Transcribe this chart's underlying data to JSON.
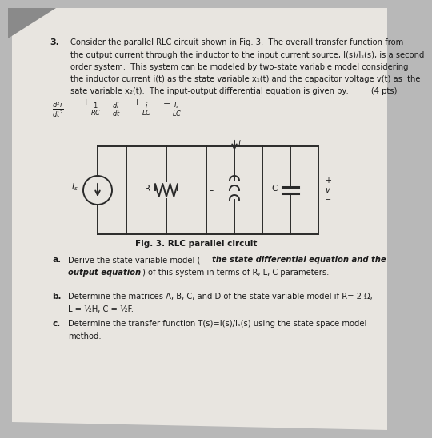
{
  "bg_color": "#b8b8b8",
  "paper_color": "#e8e5e0",
  "title_number": "3.",
  "text_color": "#1a1a1a",
  "fig_caption": "Fig. 3. RLC parallel circuit",
  "circuit_line_color": "#2a2a2a",
  "text_lines": [
    "Consider the parallel RLC circuit shown in Fig. 3.  The overall transfer function from",
    "the output current through the inductor to the input current source, I(s)/Iₛ(s), is a second",
    "order system.  This system can be modeled by two-state variable model considering",
    "the inductor current i(t) as the state variable x₁(t) and the capacitor voltage v(t) as  the",
    "sate variable x₂(t).  The input-output differential equation is given by:         (4 pts)"
  ],
  "part_a_line1": "a.   Derive the state variable model (the state differential equation and the",
  "part_a_line2": "      output equation) of this system in terms of R, L, C parameters.",
  "part_b_line1": "b.   Determine the matrices A, B, C, and D of the state variable model if R= 2 Ω,",
  "part_b_line2": "      L = ½H, C = ½F.",
  "part_c_line1": "c.    Determine the transfer function T(s)=I(s)/Iₛ(s) using the state space model",
  "part_c_line2": "       method."
}
